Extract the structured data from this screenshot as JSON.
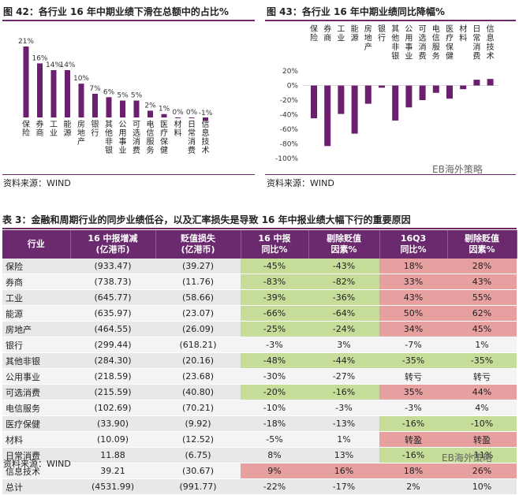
{
  "chart42": {
    "title": "图 42：各行业 16 年中期业绩下滑在总额中的占比%",
    "source": "资料来源：WIND",
    "chart_data": {
      "type": "bar",
      "categories": [
        "保险",
        "券商",
        "工业",
        "能源",
        "房地产",
        "银行",
        "其他非银",
        "公用事业",
        "可选消费",
        "电信服务",
        "医疗保健",
        "材料",
        "日常消费",
        "信息技术"
      ],
      "values": [
        21,
        16,
        14,
        14,
        10,
        7,
        6,
        5,
        5,
        2,
        1,
        0,
        0,
        -1
      ],
      "labels": [
        "21%",
        "16%",
        "14%",
        "14%",
        "10%",
        "7%",
        "6%",
        "5%",
        "5%",
        "2%",
        "1%",
        "0%",
        "0%",
        "-1%"
      ],
      "ylim": [
        -1,
        21
      ],
      "bar_color": "#6b1f6e"
    }
  },
  "chart43": {
    "title": "图 43：各行业 16 年中期业绩同比降幅%",
    "source": "资料来源：WIND",
    "watermark": "EB海外策略",
    "chart_data": {
      "type": "bar",
      "categories": [
        "保险",
        "券商",
        "工业",
        "能源",
        "房地产",
        "银行",
        "其他非银",
        "公用事业",
        "可选消费",
        "电信服务",
        "医疗保健",
        "材料",
        "日常消费",
        "信息技术"
      ],
      "values": [
        -45,
        -83,
        -39,
        -66,
        -25,
        -3,
        -48,
        -30,
        -20,
        -10,
        -18,
        -5,
        8,
        9
      ],
      "yticks": [
        "20%",
        "0%",
        "-20%",
        "-40%",
        "-60%",
        "-80%",
        "-100%"
      ],
      "ylim": [
        -100,
        20
      ],
      "bar_color": "#6b1f6e"
    }
  },
  "table3": {
    "title": "表 3：金融和周期行业的同步业绩低谷，以及汇率损失是导致 16 年中报业绩大幅下行的重要原因",
    "headers": [
      [
        "行业"
      ],
      [
        "16 中报增减",
        "(亿港币)"
      ],
      [
        "贬值损失",
        "(亿港币)"
      ],
      [
        "16 中报",
        "同比%"
      ],
      [
        "剔除贬值",
        "因素%"
      ],
      [
        "16Q3",
        "同比%"
      ],
      [
        "剔除贬值",
        "因素%"
      ]
    ],
    "rows": [
      {
        "cells": [
          "保险",
          "(933.47)",
          "(39.27)",
          "-45%",
          "-43%",
          "18%",
          "28%"
        ],
        "hl": [
          "",
          "",
          "",
          "g",
          "g",
          "r",
          "r"
        ]
      },
      {
        "cells": [
          "券商",
          "(738.73)",
          "(11.76)",
          "-83%",
          "-82%",
          "33%",
          "43%"
        ],
        "hl": [
          "",
          "",
          "",
          "g",
          "g",
          "r",
          "r"
        ]
      },
      {
        "cells": [
          "工业",
          "(645.77)",
          "(58.66)",
          "-39%",
          "-36%",
          "43%",
          "55%"
        ],
        "hl": [
          "",
          "",
          "",
          "g",
          "g",
          "r",
          "r"
        ]
      },
      {
        "cells": [
          "能源",
          "(635.97)",
          "(23.07)",
          "-66%",
          "-64%",
          "50%",
          "62%"
        ],
        "hl": [
          "",
          "",
          "",
          "g",
          "g",
          "r",
          "r"
        ]
      },
      {
        "cells": [
          "房地产",
          "(464.55)",
          "(26.09)",
          "-25%",
          "-24%",
          "34%",
          "45%"
        ],
        "hl": [
          "",
          "",
          "",
          "g",
          "g",
          "r",
          "r"
        ]
      },
      {
        "cells": [
          "银行",
          "(299.44)",
          "(618.21)",
          "-3%",
          "3%",
          "-7%",
          "1%"
        ],
        "hl": [
          "",
          "",
          "",
          "",
          "",
          "",
          ""
        ]
      },
      {
        "cells": [
          "其他非银",
          "(284.30)",
          "(20.16)",
          "-48%",
          "-44%",
          "-35%",
          "-35%"
        ],
        "hl": [
          "",
          "",
          "",
          "g",
          "g",
          "g",
          "g"
        ]
      },
      {
        "cells": [
          "公用事业",
          "(218.59)",
          "(23.68)",
          "-30%",
          "-27%",
          "转亏",
          "转亏"
        ],
        "hl": [
          "",
          "",
          "",
          "",
          "",
          "",
          ""
        ]
      },
      {
        "cells": [
          "可选消费",
          "(215.59)",
          "(40.80)",
          "-20%",
          "-16%",
          "35%",
          "44%"
        ],
        "hl": [
          "",
          "",
          "",
          "g",
          "g",
          "r",
          "r"
        ]
      },
      {
        "cells": [
          "电信服务",
          "(102.69)",
          "(70.21)",
          "-10%",
          "-3%",
          "-3%",
          "4%"
        ],
        "hl": [
          "",
          "",
          "",
          "",
          "",
          "",
          ""
        ]
      },
      {
        "cells": [
          "医疗保健",
          "(33.90)",
          "(9.92)",
          "-18%",
          "-13%",
          "-16%",
          "-10%"
        ],
        "hl": [
          "",
          "",
          "",
          "",
          "",
          "g",
          "g"
        ]
      },
      {
        "cells": [
          "材料",
          "(10.09)",
          "(12.52)",
          "-5%",
          "1%",
          "转盈",
          "转盈"
        ],
        "hl": [
          "",
          "",
          "",
          "",
          "",
          "r",
          "r"
        ]
      },
      {
        "cells": [
          "日常消费",
          "11.88",
          "(6.75)",
          "8%",
          "13%",
          "-16%",
          "-11%"
        ],
        "hl": [
          "",
          "",
          "",
          "",
          "",
          "g",
          "g"
        ]
      },
      {
        "cells": [
          "信息技术",
          "39.21",
          "(30.67)",
          "9%",
          "16%",
          "18%",
          "26%"
        ],
        "hl": [
          "",
          "",
          "",
          "r",
          "r",
          "r",
          "r"
        ]
      },
      {
        "cells": [
          "总计",
          "(4531.99)",
          "(991.77)",
          "-22%",
          "-17%",
          "2%",
          "10%"
        ],
        "hl": [
          "",
          "",
          "",
          "",
          "",
          "",
          ""
        ]
      }
    ],
    "source": "资料来源：WIND",
    "watermark": "EB海外策略"
  }
}
